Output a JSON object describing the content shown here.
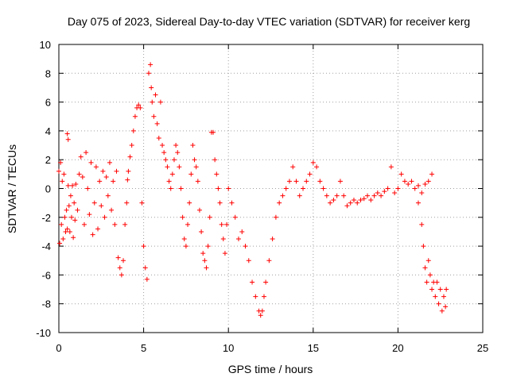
{
  "chart_data": {
    "type": "scatter",
    "title": "Day 075 of 2023, Sidereal Day-to-day VTEC variation (SDTVAR) for receiver kerg",
    "xlabel": "GPS time / hours",
    "ylabel": "SDTVAR / TECUs",
    "xlim": [
      0,
      25
    ],
    "ylim": [
      -10,
      10
    ],
    "x_ticks": [
      0,
      5,
      10,
      15,
      20,
      25
    ],
    "y_ticks": [
      -10,
      -8,
      -6,
      -4,
      -2,
      0,
      2,
      4,
      6,
      8,
      10
    ],
    "grid": true,
    "marker": "+",
    "color": "#ff0000",
    "series": [
      {
        "name": "kerg",
        "points": [
          [
            0.0,
            1.2
          ],
          [
            0.05,
            -3.8
          ],
          [
            0.1,
            1.8
          ],
          [
            0.15,
            -2.5
          ],
          [
            0.2,
            0.5
          ],
          [
            0.25,
            -3.5
          ],
          [
            0.3,
            1.0
          ],
          [
            0.35,
            -2.0
          ],
          [
            0.4,
            -3.0
          ],
          [
            0.45,
            -1.5
          ],
          [
            0.5,
            3.8
          ],
          [
            0.5,
            -2.8
          ],
          [
            0.55,
            3.4
          ],
          [
            0.55,
            0.2
          ],
          [
            0.6,
            -1.2
          ],
          [
            0.65,
            -3.0
          ],
          [
            0.7,
            -0.5
          ],
          [
            0.75,
            -2.0
          ],
          [
            0.8,
            0.2
          ],
          [
            0.85,
            -3.4
          ],
          [
            0.9,
            -1.0
          ],
          [
            0.95,
            -2.2
          ],
          [
            1.0,
            0.3
          ],
          [
            1.1,
            -1.5
          ],
          [
            1.2,
            1.0
          ],
          [
            1.3,
            2.2
          ],
          [
            1.4,
            0.8
          ],
          [
            1.5,
            -2.5
          ],
          [
            1.6,
            2.5
          ],
          [
            1.7,
            0.0
          ],
          [
            1.8,
            -1.8
          ],
          [
            1.9,
            1.8
          ],
          [
            2.0,
            -3.2
          ],
          [
            2.1,
            -1.0
          ],
          [
            2.2,
            1.5
          ],
          [
            2.3,
            -2.8
          ],
          [
            2.4,
            0.5
          ],
          [
            2.5,
            -1.2
          ],
          [
            2.6,
            1.2
          ],
          [
            2.7,
            -2.0
          ],
          [
            2.8,
            0.8
          ],
          [
            2.9,
            -0.5
          ],
          [
            3.0,
            1.8
          ],
          [
            3.1,
            -1.5
          ],
          [
            3.2,
            0.5
          ],
          [
            3.3,
            -2.5
          ],
          [
            3.4,
            1.2
          ],
          [
            3.5,
            -4.8
          ],
          [
            3.6,
            -5.5
          ],
          [
            3.7,
            -6.0
          ],
          [
            3.8,
            -5.0
          ],
          [
            3.9,
            -2.5
          ],
          [
            4.0,
            -1.0
          ],
          [
            4.05,
            0.6
          ],
          [
            4.1,
            1.2
          ],
          [
            4.2,
            2.2
          ],
          [
            4.3,
            3.0
          ],
          [
            4.4,
            4.0
          ],
          [
            4.5,
            5.0
          ],
          [
            4.6,
            5.6
          ],
          [
            4.7,
            5.8
          ],
          [
            4.8,
            5.6
          ],
          [
            4.9,
            -1.0
          ],
          [
            5.0,
            -4.0
          ],
          [
            5.1,
            -5.5
          ],
          [
            5.2,
            -6.3
          ],
          [
            5.3,
            8.0
          ],
          [
            5.4,
            8.6
          ],
          [
            5.45,
            7.0
          ],
          [
            5.5,
            6.0
          ],
          [
            5.6,
            5.0
          ],
          [
            5.7,
            6.5
          ],
          [
            5.8,
            4.5
          ],
          [
            5.9,
            3.5
          ],
          [
            6.0,
            6.0
          ],
          [
            6.1,
            3.0
          ],
          [
            6.2,
            2.5
          ],
          [
            6.3,
            2.0
          ],
          [
            6.4,
            1.5
          ],
          [
            6.5,
            0.5
          ],
          [
            6.6,
            0.0
          ],
          [
            6.7,
            1.0
          ],
          [
            6.8,
            2.0
          ],
          [
            6.9,
            3.0
          ],
          [
            7.0,
            2.5
          ],
          [
            7.1,
            1.5
          ],
          [
            7.2,
            0.0
          ],
          [
            7.3,
            -2.0
          ],
          [
            7.4,
            -3.5
          ],
          [
            7.5,
            -4.0
          ],
          [
            7.6,
            -2.5
          ],
          [
            7.7,
            -1.0
          ],
          [
            7.8,
            1.0
          ],
          [
            7.9,
            3.0
          ],
          [
            8.0,
            2.0
          ],
          [
            8.1,
            1.5
          ],
          [
            8.2,
            0.5
          ],
          [
            8.3,
            -1.5
          ],
          [
            8.4,
            -3.0
          ],
          [
            8.5,
            -4.5
          ],
          [
            8.6,
            -5.0
          ],
          [
            8.7,
            -5.5
          ],
          [
            8.8,
            -4.0
          ],
          [
            8.9,
            -2.0
          ],
          [
            9.0,
            3.9
          ],
          [
            9.1,
            3.9
          ],
          [
            9.2,
            2.0
          ],
          [
            9.3,
            1.0
          ],
          [
            9.4,
            0.0
          ],
          [
            9.5,
            -1.0
          ],
          [
            9.6,
            -2.5
          ],
          [
            9.7,
            -3.5
          ],
          [
            9.8,
            -4.5
          ],
          [
            9.9,
            -2.5
          ],
          [
            10.0,
            0.0
          ],
          [
            10.2,
            -1.0
          ],
          [
            10.4,
            -2.0
          ],
          [
            10.6,
            -3.5
          ],
          [
            10.8,
            -3.0
          ],
          [
            11.0,
            -4.0
          ],
          [
            11.2,
            -5.0
          ],
          [
            11.4,
            -6.5
          ],
          [
            11.6,
            -7.5
          ],
          [
            11.8,
            -8.5
          ],
          [
            11.9,
            -8.8
          ],
          [
            12.0,
            -8.5
          ],
          [
            12.1,
            -7.5
          ],
          [
            12.2,
            -6.5
          ],
          [
            12.4,
            -5.0
          ],
          [
            12.6,
            -3.5
          ],
          [
            12.8,
            -2.0
          ],
          [
            13.0,
            -1.0
          ],
          [
            13.2,
            -0.5
          ],
          [
            13.4,
            0.0
          ],
          [
            13.6,
            0.5
          ],
          [
            13.8,
            1.5
          ],
          [
            14.0,
            0.5
          ],
          [
            14.2,
            -0.5
          ],
          [
            14.4,
            0.0
          ],
          [
            14.6,
            0.5
          ],
          [
            14.8,
            1.0
          ],
          [
            15.0,
            1.8
          ],
          [
            15.2,
            1.5
          ],
          [
            15.4,
            0.5
          ],
          [
            15.6,
            0.0
          ],
          [
            15.8,
            -0.5
          ],
          [
            16.0,
            -1.0
          ],
          [
            16.2,
            -0.8
          ],
          [
            16.4,
            -0.5
          ],
          [
            16.6,
            0.5
          ],
          [
            16.8,
            -0.5
          ],
          [
            17.0,
            -1.2
          ],
          [
            17.2,
            -1.0
          ],
          [
            17.4,
            -0.8
          ],
          [
            17.6,
            -1.0
          ],
          [
            17.8,
            -0.8
          ],
          [
            18.0,
            -0.7
          ],
          [
            18.2,
            -0.5
          ],
          [
            18.4,
            -0.8
          ],
          [
            18.6,
            -0.5
          ],
          [
            18.8,
            -0.3
          ],
          [
            19.0,
            -0.5
          ],
          [
            19.2,
            -0.2
          ],
          [
            19.4,
            0.0
          ],
          [
            19.6,
            1.5
          ],
          [
            19.8,
            -0.3
          ],
          [
            20.0,
            0.0
          ],
          [
            20.2,
            1.0
          ],
          [
            20.4,
            0.5
          ],
          [
            20.6,
            0.3
          ],
          [
            20.8,
            0.5
          ],
          [
            21.0,
            0.0
          ],
          [
            21.2,
            0.2
          ],
          [
            21.4,
            -0.3
          ],
          [
            21.6,
            0.3
          ],
          [
            21.8,
            0.5
          ],
          [
            22.0,
            1.0
          ],
          [
            21.2,
            -1.0
          ],
          [
            21.4,
            -2.5
          ],
          [
            21.5,
            -4.0
          ],
          [
            21.6,
            -5.5
          ],
          [
            21.7,
            -6.5
          ],
          [
            21.8,
            -5.0
          ],
          [
            21.9,
            -6.0
          ],
          [
            22.0,
            -7.0
          ],
          [
            22.1,
            -6.5
          ],
          [
            22.2,
            -7.5
          ],
          [
            22.3,
            -6.5
          ],
          [
            22.4,
            -8.0
          ],
          [
            22.5,
            -7.0
          ],
          [
            22.6,
            -8.5
          ],
          [
            22.7,
            -7.5
          ],
          [
            22.8,
            -8.2
          ],
          [
            22.85,
            -7.0
          ]
        ]
      }
    ]
  }
}
